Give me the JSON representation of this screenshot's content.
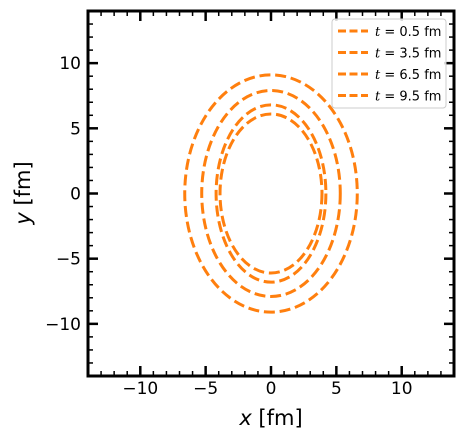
{
  "chart_data": {
    "type": "line",
    "title": "",
    "xlabel": {
      "var": "x",
      "unit": " [fm]"
    },
    "ylabel": {
      "var": "y",
      "unit": " [fm]"
    },
    "xlim": [
      -14,
      14
    ],
    "ylim": [
      -14,
      14
    ],
    "xticks": [
      -10,
      -5,
      0,
      5,
      10
    ],
    "yticks": [
      -10,
      -5,
      0,
      5,
      10
    ],
    "minor_step": 1,
    "grid": false,
    "legend_position": "top-right",
    "series": [
      {
        "name": "t = 0.5 fm",
        "label_var": "t",
        "label_value": " = 0.5 fm",
        "color": "#ff7f0e",
        "style": "dashed",
        "rx": 3.9,
        "ry": 6.1
      },
      {
        "name": "t = 3.5 fm",
        "label_var": "t",
        "label_value": " = 3.5 fm",
        "color": "#ff7f0e",
        "style": "dashed",
        "rx": 4.2,
        "ry": 6.8
      },
      {
        "name": "t = 6.5 fm",
        "label_var": "t",
        "label_value": " = 6.5 fm",
        "color": "#ff7f0e",
        "style": "dashed",
        "rx": 5.3,
        "ry": 7.9
      },
      {
        "name": "t = 9.5 fm",
        "label_var": "t",
        "label_value": " = 9.5 fm",
        "color": "#ff7f0e",
        "style": "dashed",
        "rx": 6.6,
        "ry": 9.1
      }
    ]
  }
}
